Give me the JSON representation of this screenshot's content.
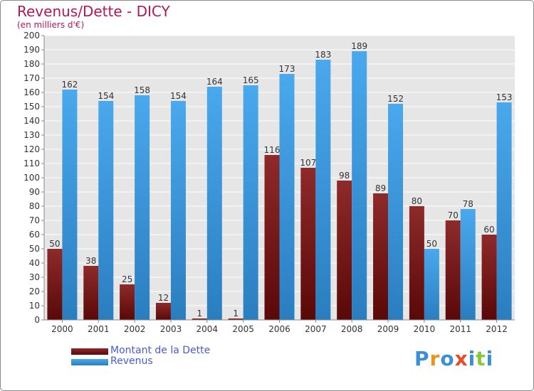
{
  "header": {
    "title": "Revenus/Dette - DICY",
    "subtitle": "(en milliers d'€)"
  },
  "chart_data": {
    "type": "bar",
    "categories": [
      "2000",
      "2001",
      "2002",
      "2003",
      "2004",
      "2005",
      "2006",
      "2007",
      "2008",
      "2009",
      "2010",
      "2011",
      "2012"
    ],
    "series": [
      {
        "name": "Montant de la Dette",
        "values": [
          50,
          38,
          25,
          12,
          1,
          1,
          116,
          107,
          98,
          89,
          80,
          70,
          60
        ],
        "color": "#7a1a1a"
      },
      {
        "name": "Revenus",
        "values": [
          162,
          154,
          158,
          154,
          164,
          165,
          173,
          183,
          189,
          152,
          50,
          78,
          153
        ],
        "color": "#3d9be3"
      }
    ],
    "ylim": [
      0,
      200
    ],
    "ytick_step": 10,
    "grid": true,
    "legend_position": "bottom-left"
  },
  "logo": {
    "text": "Proxiti",
    "colors": [
      "#3a8fd8",
      "#e8941a",
      "#3a8fd8",
      "#e84a2a",
      "#3a8fd8",
      "#8ac83a",
      "#3a8fd8"
    ]
  }
}
